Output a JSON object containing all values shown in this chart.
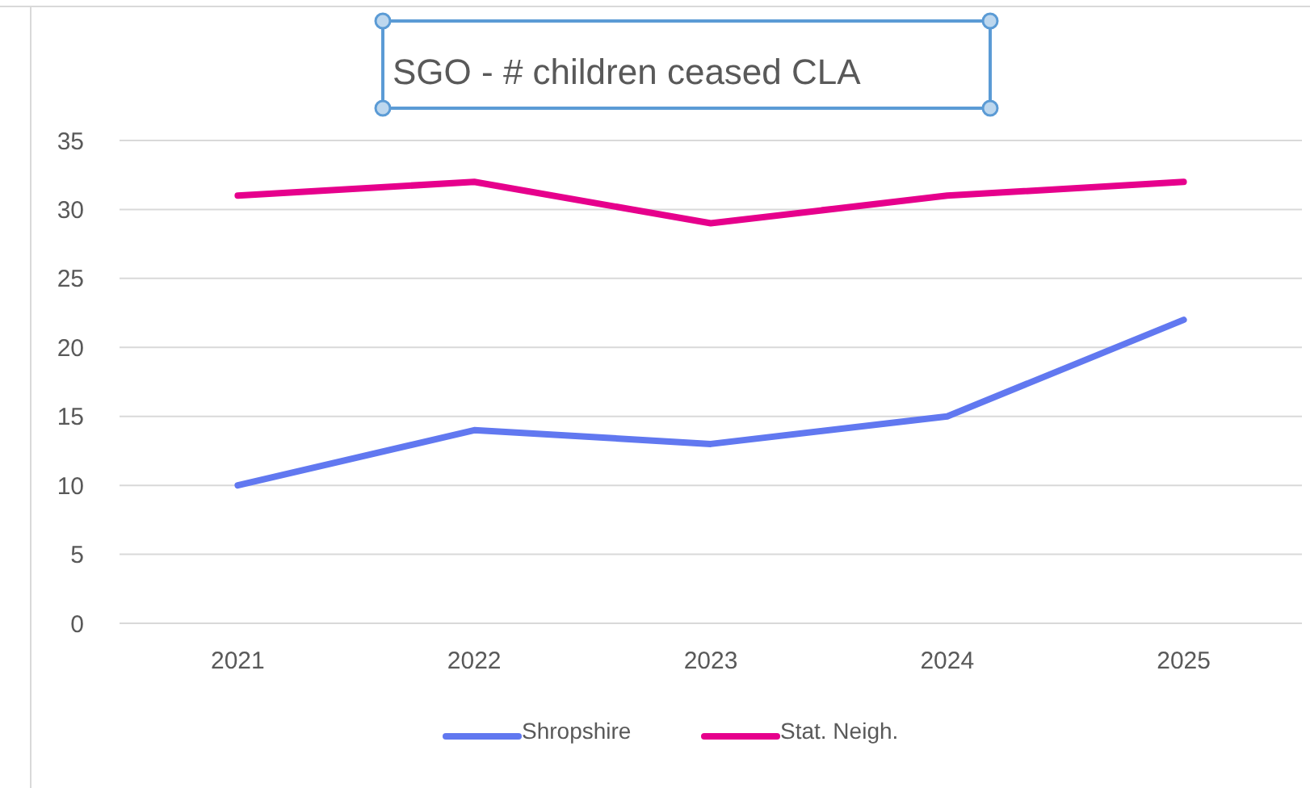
{
  "chart_data": {
    "type": "line",
    "title": "SGO - # children ceased CLA",
    "categories": [
      "2021",
      "2022",
      "2023",
      "2024",
      "2025"
    ],
    "series": [
      {
        "name": "Shropshire",
        "color": "#6178f0",
        "values": [
          10,
          14,
          13,
          15,
          22
        ]
      },
      {
        "name": "Stat. Neigh.",
        "color": "#e6008c",
        "values": [
          31,
          32,
          29,
          31,
          32
        ]
      }
    ],
    "ylim": [
      0,
      35
    ],
    "yticks": [
      0,
      5,
      10,
      15,
      20,
      25,
      30,
      35
    ],
    "grid": "y",
    "legend": "bottom",
    "marker": "none",
    "line_style": "solid"
  }
}
